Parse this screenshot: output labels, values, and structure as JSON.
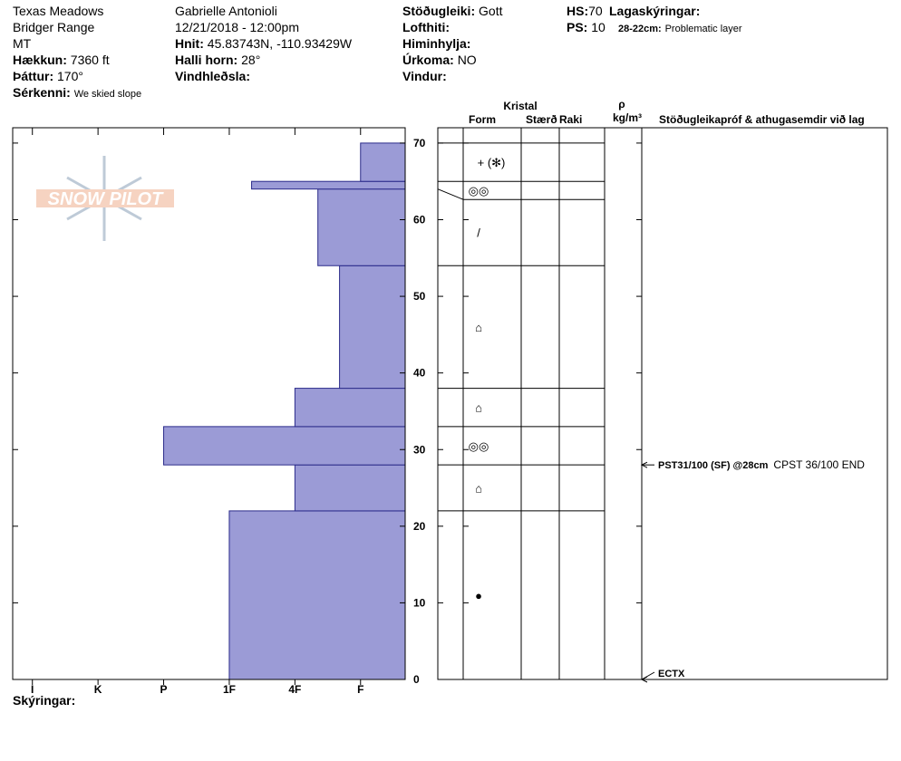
{
  "header": {
    "site": "Texas Meadows",
    "range": "Bridger Range",
    "state": "MT",
    "elevation": {
      "label": "Hækkun:",
      "value": "7360 ft"
    },
    "aspect": {
      "label": "Þáttur:",
      "value": "170°"
    },
    "features": {
      "label": "Sérkenni:",
      "value": "We skied slope"
    },
    "observer": "Gabrielle Antonioli",
    "datetime": "12/21/2018 - 12:00pm",
    "coords": {
      "label": "Hnit:",
      "value": "45.83743N, -110.93429W"
    },
    "slope": {
      "label": "Halli horn:",
      "value": "28°"
    },
    "wind_loading": {
      "label": "Vindhleðsla:"
    },
    "stability": {
      "label": "Stöðugleiki:",
      "value": "Gott"
    },
    "air_temp": {
      "label": "Lofthiti:"
    },
    "sky": {
      "label": "Himinhylja:"
    },
    "precip": {
      "label": "Úrkoma:",
      "value": "NO"
    },
    "wind": {
      "label": "Vindur:"
    },
    "hs": {
      "label": "HS:",
      "value": "70"
    },
    "ps": {
      "label": "PS:",
      "value": "10"
    },
    "layer_notes": {
      "label": "Lagaskýringar:",
      "items": [
        {
          "range": "28-22cm:",
          "note": "Problematic layer"
        }
      ]
    }
  },
  "logo": "SNOW PILOT",
  "legend_label": "Skýringar:",
  "chart_data": {
    "type": "bar",
    "orientation": "horizontal",
    "color": "#9b9bd6",
    "edge_color": "#2a2a8a",
    "layers": [
      {
        "bottom": 0,
        "top": 22,
        "hardness": 3
      },
      {
        "bottom": 22,
        "top": 28,
        "hardness": 2
      },
      {
        "bottom": 28,
        "top": 33,
        "hardness": 4
      },
      {
        "bottom": 33,
        "top": 38,
        "hardness": 2
      },
      {
        "bottom": 38,
        "top": 54,
        "hardness": 1.32
      },
      {
        "bottom": 54,
        "top": 64,
        "hardness": 1.65
      },
      {
        "bottom": 64,
        "top": 65,
        "hardness": 2.66
      },
      {
        "bottom": 65,
        "top": 70,
        "hardness": 1
      }
    ],
    "xlim": [
      6.3,
      0.32
    ],
    "xticks": [
      {
        "value": 6,
        "label": "I"
      },
      {
        "value": 5,
        "label": "K"
      },
      {
        "value": 4,
        "label": "P"
      },
      {
        "value": 3,
        "label": "1F"
      },
      {
        "value": 2,
        "label": "4F"
      },
      {
        "value": 1,
        "label": "F"
      }
    ],
    "ylim": [
      0,
      72
    ],
    "yticks": [
      0,
      10,
      20,
      30,
      40,
      50,
      60,
      70
    ]
  },
  "layer_table": {
    "crystal": "Kristal",
    "form": "Form",
    "size": "Stærð",
    "moisture": "Raki",
    "density_symbol": "ρ",
    "density_unit": "kg/m³",
    "comments": "Stöðugleikapróf & athugasemdir við lag",
    "grain_forms": [
      "●",
      "⌂",
      "◎◎",
      "⌂",
      "⌂",
      "/",
      "◎◎",
      "+ (✻)"
    ]
  },
  "tests": [
    {
      "label": "PST31/100 (SF) @28cm",
      "comment": "CPST 36/100 END",
      "height": 28
    },
    {
      "label": "ECTX",
      "height": 0
    }
  ]
}
